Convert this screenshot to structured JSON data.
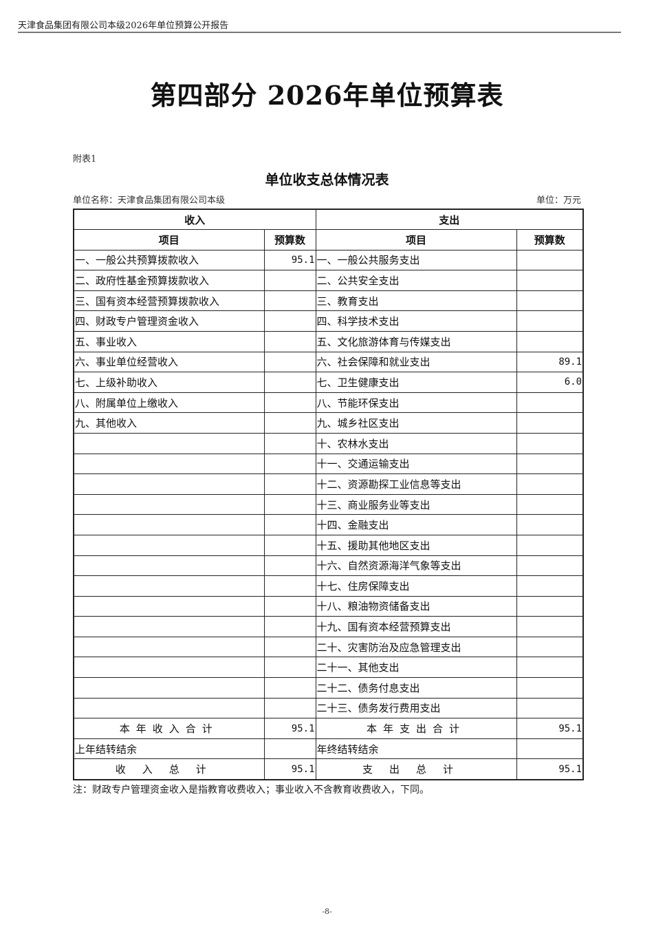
{
  "header": {
    "running_title": "天津食品集团有限公司本级2026年单位预算公开报告"
  },
  "title": "第四部分 2026年单位预算表",
  "attachment": "附表1",
  "table_title": "单位收支总体情况表",
  "unit_name": "单位名称：天津食品集团有限公司本级",
  "unit": "单位：万元",
  "columns": {
    "income": "收入",
    "expense": "支出",
    "item": "项目",
    "budget": "预算数"
  },
  "rows": [
    {
      "income_item": "一、一般公共预算拨款收入",
      "income_value": "95.1",
      "expense_item": "一、一般公共服务支出",
      "expense_value": ""
    },
    {
      "income_item": "二、政府性基金预算拨款收入",
      "income_value": "",
      "expense_item": "二、公共安全支出",
      "expense_value": ""
    },
    {
      "income_item": "三、国有资本经营预算拨款收入",
      "income_value": "",
      "expense_item": "三、教育支出",
      "expense_value": ""
    },
    {
      "income_item": "四、财政专户管理资金收入",
      "income_value": "",
      "expense_item": "四、科学技术支出",
      "expense_value": ""
    },
    {
      "income_item": "五、事业收入",
      "income_value": "",
      "expense_item": "五、文化旅游体育与传媒支出",
      "expense_value": ""
    },
    {
      "income_item": "六、事业单位经营收入",
      "income_value": "",
      "expense_item": "六、社会保障和就业支出",
      "expense_value": "89.1"
    },
    {
      "income_item": "七、上级补助收入",
      "income_value": "",
      "expense_item": "七、卫生健康支出",
      "expense_value": "6.0"
    },
    {
      "income_item": "八、附属单位上缴收入",
      "income_value": "",
      "expense_item": "八、节能环保支出",
      "expense_value": ""
    },
    {
      "income_item": "九、其他收入",
      "income_value": "",
      "expense_item": "九、城乡社区支出",
      "expense_value": ""
    },
    {
      "income_item": "",
      "income_value": "",
      "expense_item": "十、农林水支出",
      "expense_value": ""
    },
    {
      "income_item": "",
      "income_value": "",
      "expense_item": "十一、交通运输支出",
      "expense_value": ""
    },
    {
      "income_item": "",
      "income_value": "",
      "expense_item": "十二、资源勘探工业信息等支出",
      "expense_value": ""
    },
    {
      "income_item": "",
      "income_value": "",
      "expense_item": "十三、商业服务业等支出",
      "expense_value": ""
    },
    {
      "income_item": "",
      "income_value": "",
      "expense_item": "十四、金融支出",
      "expense_value": ""
    },
    {
      "income_item": "",
      "income_value": "",
      "expense_item": "十五、援助其他地区支出",
      "expense_value": ""
    },
    {
      "income_item": "",
      "income_value": "",
      "expense_item": "十六、自然资源海洋气象等支出",
      "expense_value": ""
    },
    {
      "income_item": "",
      "income_value": "",
      "expense_item": "十七、住房保障支出",
      "expense_value": ""
    },
    {
      "income_item": "",
      "income_value": "",
      "expense_item": "十八、粮油物资储备支出",
      "expense_value": ""
    },
    {
      "income_item": "",
      "income_value": "",
      "expense_item": "十九、国有资本经营预算支出",
      "expense_value": ""
    },
    {
      "income_item": "",
      "income_value": "",
      "expense_item": "二十、灾害防治及应急管理支出",
      "expense_value": ""
    },
    {
      "income_item": "",
      "income_value": "",
      "expense_item": "二十一、其他支出",
      "expense_value": ""
    },
    {
      "income_item": "",
      "income_value": "",
      "expense_item": "二十二、债务付息支出",
      "expense_value": ""
    },
    {
      "income_item": "",
      "income_value": "",
      "expense_item": "二十三、债务发行费用支出",
      "expense_value": ""
    }
  ],
  "totals": {
    "year_income_label": "本年收入合计",
    "year_income_value": "95.1",
    "year_expense_label": "本年支出合计",
    "year_expense_value": "95.1",
    "carryover_in_label": "上年结转结余",
    "carryover_in_value": "",
    "carryover_out_label": "年终结转结余",
    "carryover_out_value": "",
    "total_income_label": "收入总计",
    "total_income_value": "95.1",
    "total_expense_label": "支出总计",
    "total_expense_value": "95.1"
  },
  "note": "注：财政专户管理资金收入是指教育收费收入；事业收入不含教育收费收入，下同。",
  "page_number": "-8-"
}
